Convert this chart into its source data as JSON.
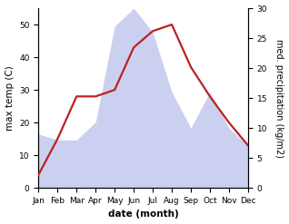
{
  "months": [
    "Jan",
    "Feb",
    "Mar",
    "Apr",
    "May",
    "Jun",
    "Jul",
    "Aug",
    "Sep",
    "Oct",
    "Nov",
    "Dec"
  ],
  "temperature": [
    4,
    15,
    28,
    28,
    30,
    43,
    48,
    50,
    37,
    28,
    20,
    13
  ],
  "precipitation": [
    9,
    8,
    8,
    11,
    27,
    30,
    26,
    16,
    10,
    16,
    10,
    7
  ],
  "temp_ylim": [
    0,
    55
  ],
  "precip_ylim": [
    0,
    30
  ],
  "temp_yticks": [
    0,
    10,
    20,
    30,
    40,
    50
  ],
  "precip_yticks": [
    0,
    5,
    10,
    15,
    20,
    25,
    30
  ],
  "fill_color": "#b0b8e8",
  "fill_alpha": 0.65,
  "line_color": "#bb2222",
  "line_width": 1.6,
  "xlabel": "date (month)",
  "ylabel_left": "max temp (C)",
  "ylabel_right": "med. precipitation (kg/m2)",
  "bg_color": "#ffffff",
  "label_fontsize": 7.5,
  "tick_fontsize": 6.5
}
